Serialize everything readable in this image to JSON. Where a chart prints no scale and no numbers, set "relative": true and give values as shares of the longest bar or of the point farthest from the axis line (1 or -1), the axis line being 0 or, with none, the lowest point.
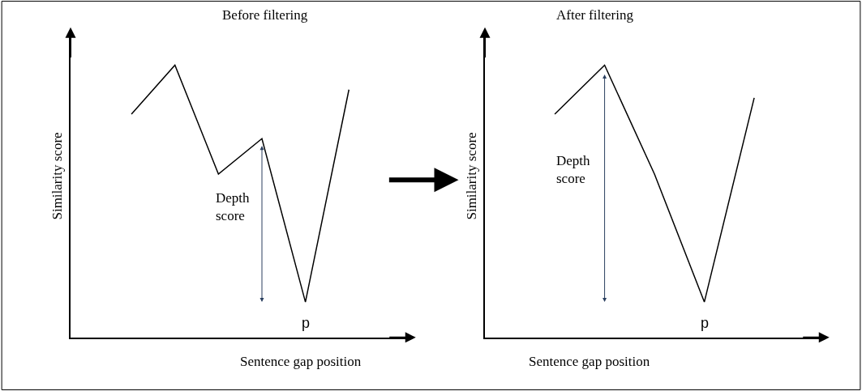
{
  "chart_data": [
    {
      "type": "line",
      "title": "Before filtering",
      "xlabel": "Sentence gap position",
      "ylabel": "Similarity score",
      "relative": true,
      "categories": [
        null,
        null,
        null,
        null,
        null,
        null
      ],
      "series": [
        {
          "color": "#000000",
          "values": [
            0.82,
            1,
            0.6,
            0.73,
            0.13,
            0.91
          ]
        }
      ],
      "annotations": [
        "Depth\nscore",
        "p"
      ]
    },
    {
      "type": "line",
      "title": "After filtering",
      "xlabel": "Sentence gap position",
      "ylabel": "Similarity score",
      "relative": true,
      "categories": [
        null,
        null,
        null,
        null,
        null
      ],
      "series": [
        {
          "color": "#000000",
          "values": [
            0.82,
            1,
            0.6,
            0.13,
            0.88
          ]
        }
      ],
      "annotations": [
        "Depth\nscore",
        "p"
      ]
    }
  ]
}
